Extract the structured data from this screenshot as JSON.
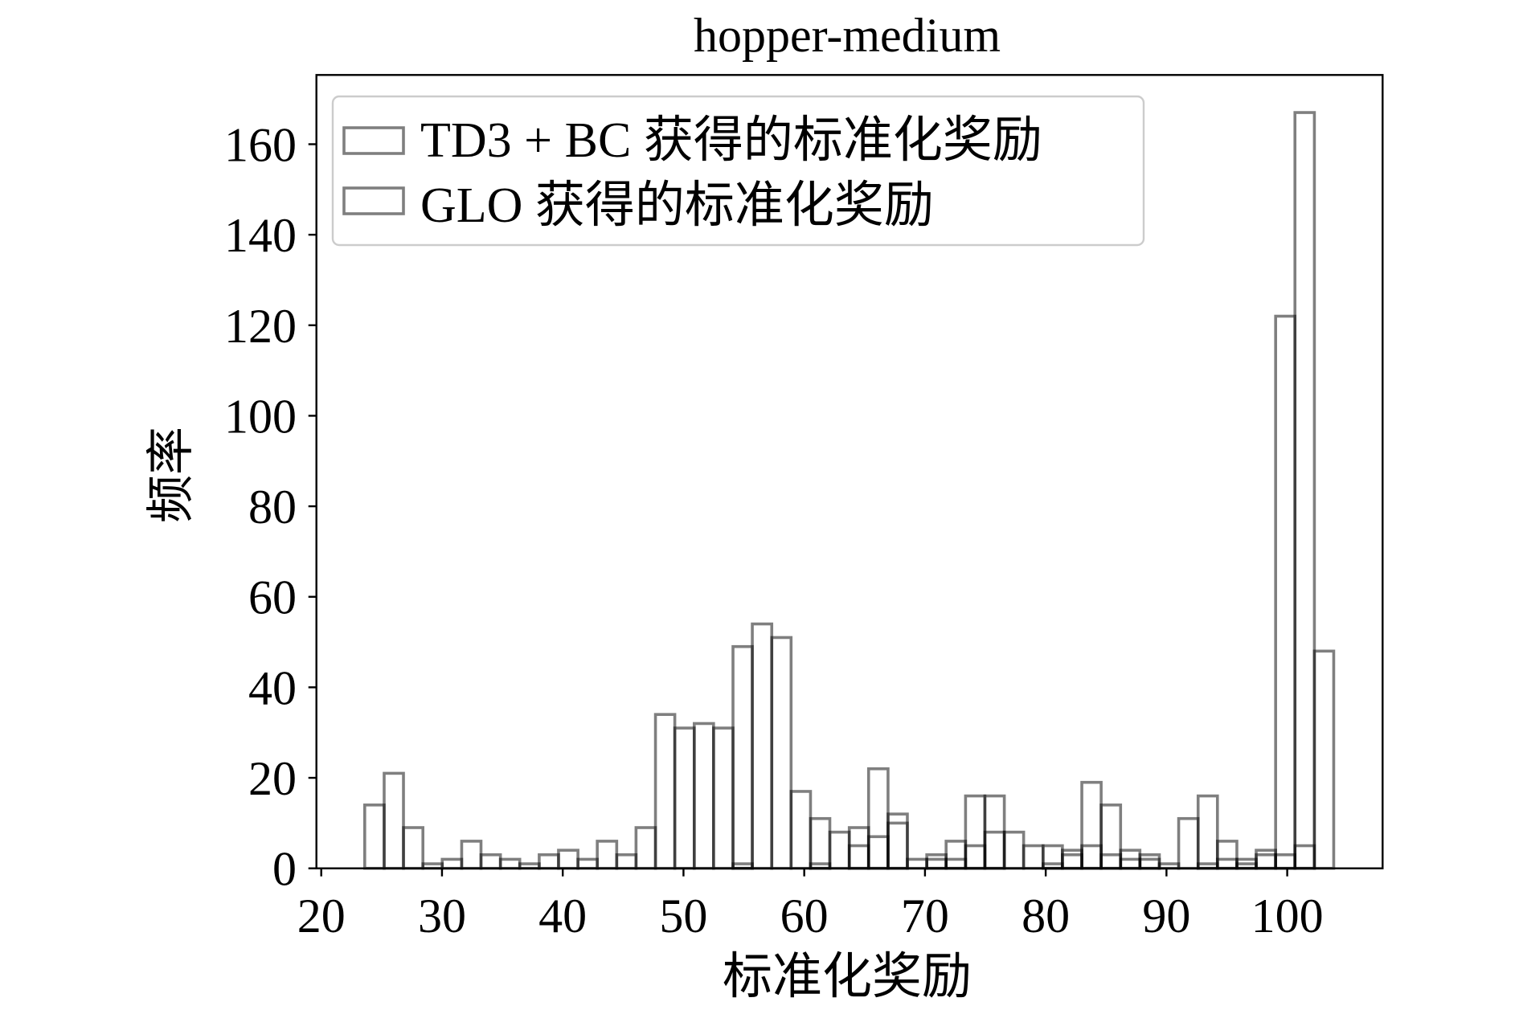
{
  "chart_data": {
    "type": "bar",
    "title": "hopper-medium",
    "xlabel": "标准化奖励",
    "ylabel": "频率",
    "xlim": [
      19.6,
      107.9
    ],
    "ylim": [
      0,
      175.3
    ],
    "xticks": [
      20,
      30,
      40,
      50,
      60,
      70,
      80,
      90,
      100
    ],
    "yticks": [
      0,
      20,
      40,
      60,
      80,
      100,
      120,
      140,
      160
    ],
    "grid": false,
    "legend": {
      "placement": "upper left"
    },
    "bin_edges": [
      23.6,
      25.21,
      26.81,
      28.42,
      30.02,
      31.63,
      33.23,
      34.84,
      36.44,
      38.05,
      39.65,
      41.26,
      42.86,
      44.47,
      46.07,
      47.68,
      49.28,
      50.89,
      52.49,
      54.1,
      55.7,
      57.31,
      58.91,
      60.52,
      62.12,
      63.73,
      65.33,
      66.94,
      68.54,
      70.15,
      71.75,
      73.36,
      74.96,
      76.57,
      78.17,
      79.78,
      81.38,
      82.99,
      84.59,
      86.2,
      87.8,
      89.41,
      91.01,
      92.62,
      94.22,
      95.83,
      97.43,
      99.04,
      100.64,
      102.25,
      103.85
    ],
    "series": [
      {
        "name": "TD3 + BC 获得的标准化奖励",
        "values": [
          14,
          21,
          9,
          1,
          2,
          6,
          3,
          2,
          1,
          3,
          4,
          2,
          6,
          3,
          9,
          34,
          31,
          32,
          31,
          49,
          54,
          51,
          17,
          11,
          8,
          9,
          22,
          12,
          2,
          3,
          6,
          16,
          16,
          8,
          5,
          5,
          4,
          19,
          14,
          4,
          3,
          1,
          11,
          16,
          6,
          2,
          4,
          3,
          5,
          0
        ]
      },
      {
        "name": "GLO 获得的标准化奖励",
        "values": [
          0,
          0,
          0,
          0,
          0,
          0,
          0,
          0,
          0,
          0,
          0,
          0,
          0,
          0,
          0,
          0,
          0,
          0,
          0,
          1,
          0,
          0,
          0,
          1,
          0,
          5,
          7,
          10,
          0,
          2,
          2,
          5,
          8,
          0,
          0,
          1,
          3,
          5,
          3,
          2,
          2,
          0,
          0,
          1,
          2,
          1,
          3,
          122,
          167,
          48
        ]
      }
    ],
    "colors": {
      "bar_edge": "#000000",
      "legend_frame": "#cccccc"
    }
  }
}
